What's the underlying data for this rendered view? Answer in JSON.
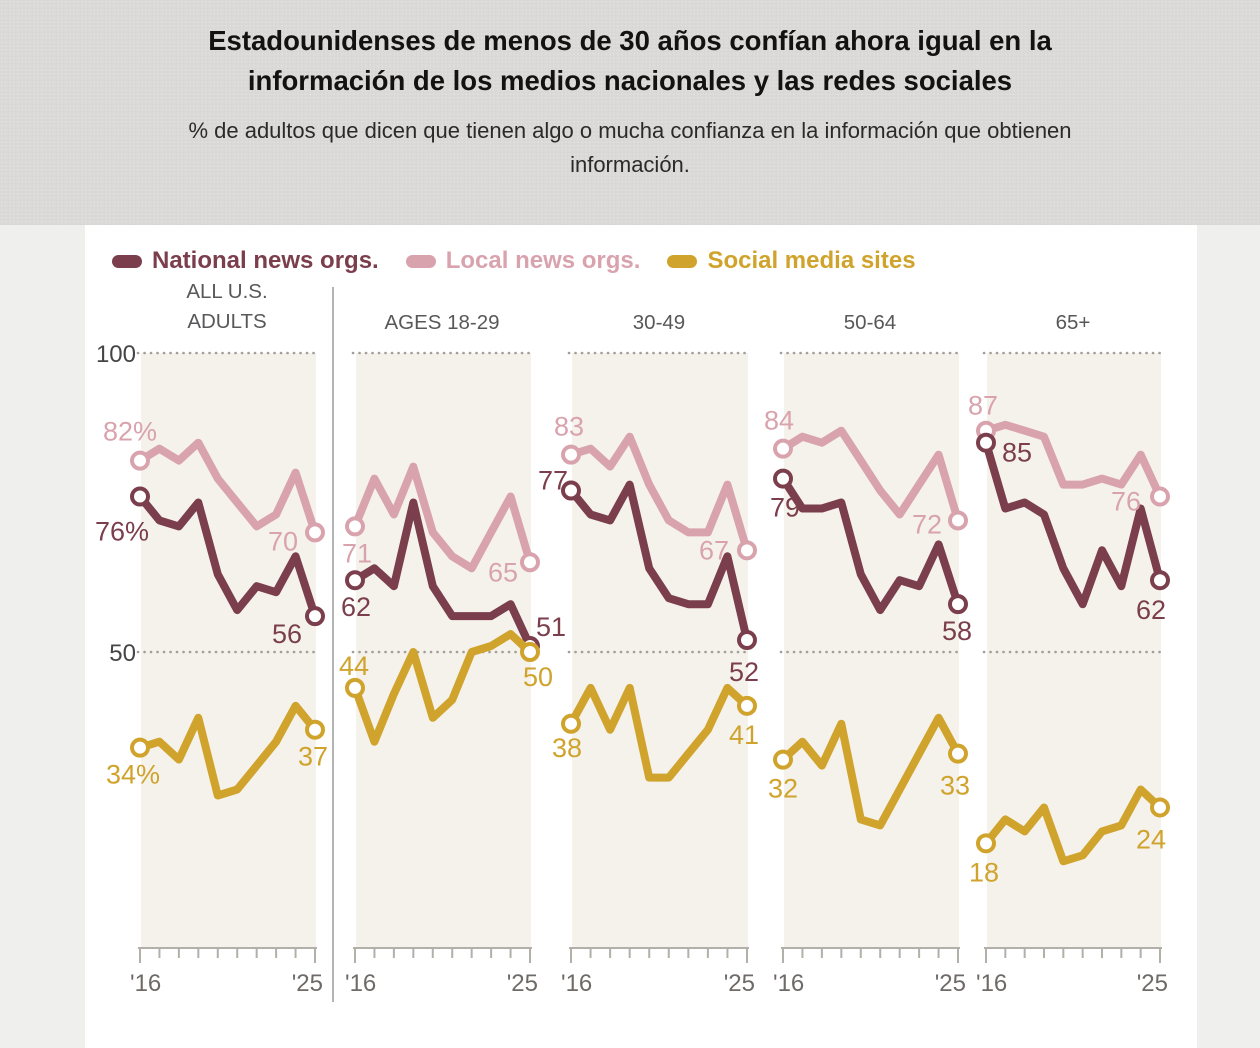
{
  "page": {
    "band_color": "#dcdad8",
    "page_background": "#efefee",
    "card_color": "#ffffff",
    "plot_stripe_color": "#f5f2ec",
    "grid_dot_color": "#a39e99",
    "axis_color": "#b3afa9",
    "divider_color": "#9c9c9c"
  },
  "header": {
    "title": "Estadounidenses de menos de 30 años confían ahora igual en la información de los medios nacionales y las redes sociales",
    "subtitle": "% de adultos que dicen que tienen algo o mucha confianza en la información que obtienen información."
  },
  "legend": [
    {
      "key": "national",
      "label": "National news orgs.",
      "color": "#7b3e4c"
    },
    {
      "key": "local",
      "label": "Local news orgs.",
      "color": "#d9a3ae"
    },
    {
      "key": "social",
      "label": "Social media sites",
      "color": "#d0a32c"
    }
  ],
  "axis": {
    "y_top_label": "100",
    "y_mid_label": "50",
    "x_start_label": "'16",
    "x_end_label": "'25"
  },
  "chart_data": {
    "type": "line",
    "x": [
      2016,
      2017,
      2018,
      2019,
      2020,
      2021,
      2022,
      2023,
      2024,
      2025
    ],
    "y_gridlines": [
      100,
      50
    ],
    "ylim_visible": [
      0,
      100
    ],
    "legend_position": "top",
    "panels": [
      {
        "header": "ALL U.S. ADULTS",
        "series": [
          {
            "key": "local",
            "name": "Local news orgs.",
            "values": [
              82,
              84,
              82,
              85,
              79,
              75,
              71,
              73,
              80,
              70
            ],
            "start_label": "82%",
            "end_label": "70"
          },
          {
            "key": "national",
            "name": "National news orgs.",
            "values": [
              76,
              72,
              71,
              75,
              63,
              57,
              61,
              60,
              66,
              56
            ],
            "start_label": "76%",
            "end_label": "56"
          },
          {
            "key": "social",
            "name": "Social media sites",
            "values": [
              34,
              35,
              32,
              39,
              26,
              27,
              31,
              35,
              41,
              37
            ],
            "start_label": "34%",
            "end_label": "37"
          }
        ]
      },
      {
        "header": "AGES 18-29",
        "series": [
          {
            "key": "local",
            "name": "Local news orgs.",
            "values": [
              71,
              79,
              73,
              81,
              70,
              66,
              64,
              70,
              76,
              65
            ],
            "start_label": "71",
            "end_label": "65"
          },
          {
            "key": "national",
            "name": "National news orgs.",
            "values": [
              62,
              64,
              61,
              75,
              61,
              56,
              56,
              56,
              58,
              51
            ],
            "start_label": "62",
            "end_label": "51"
          },
          {
            "key": "social",
            "name": "Social media sites",
            "values": [
              44,
              35,
              43,
              50,
              39,
              42,
              50,
              51,
              53,
              50
            ],
            "start_label": "44",
            "end_label": "50"
          }
        ]
      },
      {
        "header": "30-49",
        "series": [
          {
            "key": "local",
            "name": "Local news orgs.",
            "values": [
              83,
              84,
              81,
              86,
              78,
              72,
              70,
              70,
              78,
              67
            ],
            "start_label": "83",
            "end_label": "67"
          },
          {
            "key": "national",
            "name": "National news orgs.",
            "values": [
              77,
              73,
              72,
              78,
              64,
              59,
              58,
              58,
              66,
              52
            ],
            "start_label": "77",
            "end_label": "52"
          },
          {
            "key": "social",
            "name": "Social media sites",
            "values": [
              38,
              44,
              37,
              44,
              29,
              29,
              33,
              37,
              44,
              41
            ],
            "start_label": "38",
            "end_label": "41"
          }
        ]
      },
      {
        "header": "50-64",
        "series": [
          {
            "key": "local",
            "name": "Local news orgs.",
            "values": [
              84,
              86,
              85,
              87,
              82,
              77,
              73,
              78,
              83,
              72
            ],
            "start_label": "84",
            "end_label": "72"
          },
          {
            "key": "national",
            "name": "National news orgs.",
            "values": [
              79,
              74,
              74,
              75,
              63,
              57,
              62,
              61,
              68,
              58
            ],
            "start_label": "79",
            "end_label": "58"
          },
          {
            "key": "social",
            "name": "Social media sites",
            "values": [
              32,
              35,
              31,
              38,
              22,
              21,
              27,
              33,
              39,
              33
            ],
            "start_label": "32",
            "end_label": "33"
          }
        ]
      },
      {
        "header": "65+",
        "series": [
          {
            "key": "local",
            "name": "Local news orgs.",
            "values": [
              87,
              88,
              87,
              86,
              78,
              78,
              79,
              78,
              83,
              76
            ],
            "start_label": "87",
            "end_label": "76"
          },
          {
            "key": "national",
            "name": "National news orgs.",
            "values": [
              85,
              74,
              75,
              73,
              64,
              58,
              67,
              61,
              74,
              62
            ],
            "start_label": "85",
            "end_label": "62"
          },
          {
            "key": "social",
            "name": "Social media sites",
            "values": [
              18,
              22,
              20,
              24,
              15,
              16,
              20,
              21,
              27,
              24
            ],
            "start_label": "18",
            "end_label": "24"
          }
        ]
      }
    ]
  }
}
